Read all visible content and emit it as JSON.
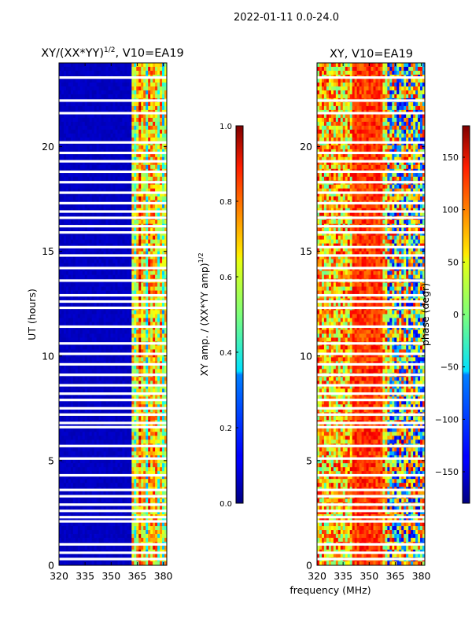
{
  "figure": {
    "suptitle": "2022-01-11 0.0-24.0",
    "xlabel_shared": "frequency (MHz)"
  },
  "chart_data": [
    {
      "type": "heatmap",
      "title": "XY/(XX*YY)^{1/2}, V10=EA19",
      "title_main": "XY/(XX*YY)",
      "title_sup": "1/2",
      "title_tail": ", V10=EA19",
      "xlabel": "",
      "ylabel": "UT (hours)",
      "xlim": [
        320,
        382
      ],
      "ylim": [
        0,
        24
      ],
      "xticks": [
        320,
        335,
        350,
        365,
        380
      ],
      "yticks": [
        0,
        5,
        10,
        15,
        20
      ],
      "colorbar": {
        "label": "XY amp. / (XX*YY amp)^{1/2}",
        "label_main": "XY amp. / (XX*YY amp)",
        "label_sup": "1/2",
        "range": [
          0.0,
          1.0
        ],
        "ticks": [
          "0.0",
          "0.2",
          "0.4",
          "0.6",
          "0.8",
          "1.0"
        ],
        "tick_values": [
          0.0,
          0.2,
          0.4,
          0.6,
          0.8,
          1.0
        ],
        "colormap": "jet"
      },
      "gap_rows_hours": [
        0.3,
        0.6,
        1.0,
        2.1,
        2.3,
        2.6,
        2.9,
        3.3,
        3.6,
        4.3,
        5.1,
        5.7,
        6.6,
        6.8,
        7.2,
        7.5,
        7.9,
        8.2,
        8.6,
        9.1,
        9.6,
        10.1,
        10.6,
        11.4,
        12.3,
        12.6,
        12.9,
        13.6,
        14.2,
        14.8,
        15.2,
        15.9,
        16.2,
        16.6,
        16.9,
        17.3,
        17.8,
        18.3,
        18.8,
        19.3,
        19.7,
        20.2,
        21.6,
        22.2,
        23.3
      ],
      "description": "low values (~0.05) below 362 MHz, higher mixed values (0.3-0.9) from 362-382 MHz"
    },
    {
      "type": "heatmap",
      "title": "XY, V10=EA19",
      "xlabel": "",
      "ylabel": "phase (degr)",
      "xlim": [
        320,
        382
      ],
      "ylim": [
        0,
        24
      ],
      "xticks": [
        320,
        335,
        350,
        365,
        380
      ],
      "yticks": [
        0,
        5,
        10,
        15,
        20
      ],
      "colorbar": {
        "label": "phase (degr)",
        "range": [
          -180,
          180
        ],
        "ticks": [
          "−150",
          "−100",
          "−50",
          "0",
          "50",
          "100",
          "150"
        ],
        "tick_values": [
          -150,
          -100,
          -50,
          0,
          50,
          100,
          150
        ],
        "colormap": "jet"
      },
      "gap_rows_hours": [
        0.3,
        0.6,
        1.0,
        2.1,
        2.3,
        2.6,
        2.9,
        3.3,
        3.6,
        4.3,
        5.1,
        5.7,
        6.6,
        6.8,
        7.2,
        7.5,
        7.9,
        8.2,
        8.6,
        9.1,
        9.6,
        10.1,
        10.6,
        11.4,
        12.3,
        12.6,
        12.9,
        13.6,
        14.2,
        14.8,
        15.2,
        15.9,
        16.2,
        16.6,
        16.9,
        17.3,
        17.8,
        18.3,
        18.8,
        19.3,
        19.7,
        20.2,
        21.6,
        22.2,
        23.3
      ],
      "description": "phase mostly 0-150 degr (green/yellow/red) with blue wrap bands above 360 MHz"
    }
  ]
}
